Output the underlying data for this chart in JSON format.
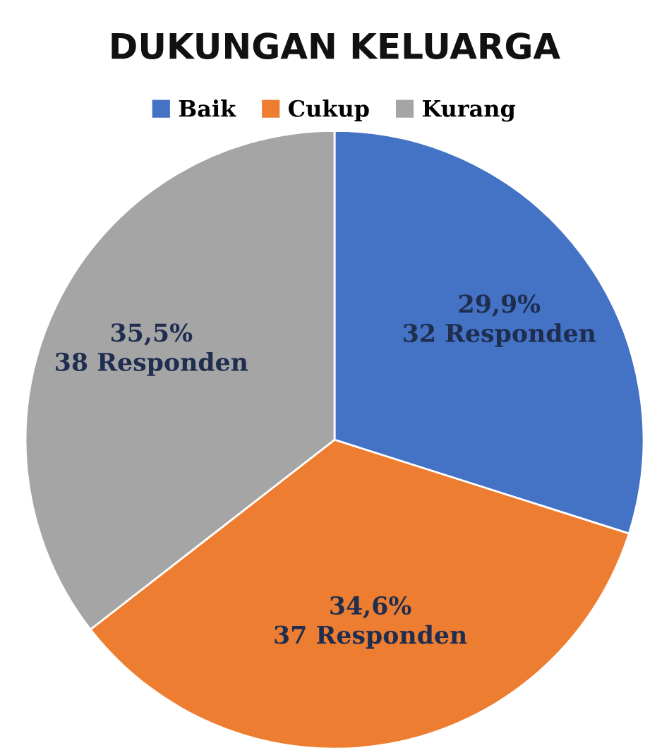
{
  "chart_data": {
    "type": "pie",
    "title": "DUKUNGAN KELUARGA",
    "categories": [
      "Baik",
      "Cukup",
      "Kurang"
    ],
    "values": [
      32,
      37,
      38
    ],
    "value_labels": [
      "29,9%\n32 Responden",
      "34,6%\n37 Responden",
      "35,5%\n38 Responden"
    ],
    "colors": [
      "#4472c4",
      "#ed7d31",
      "#a5a5a5"
    ],
    "legend": "top"
  }
}
